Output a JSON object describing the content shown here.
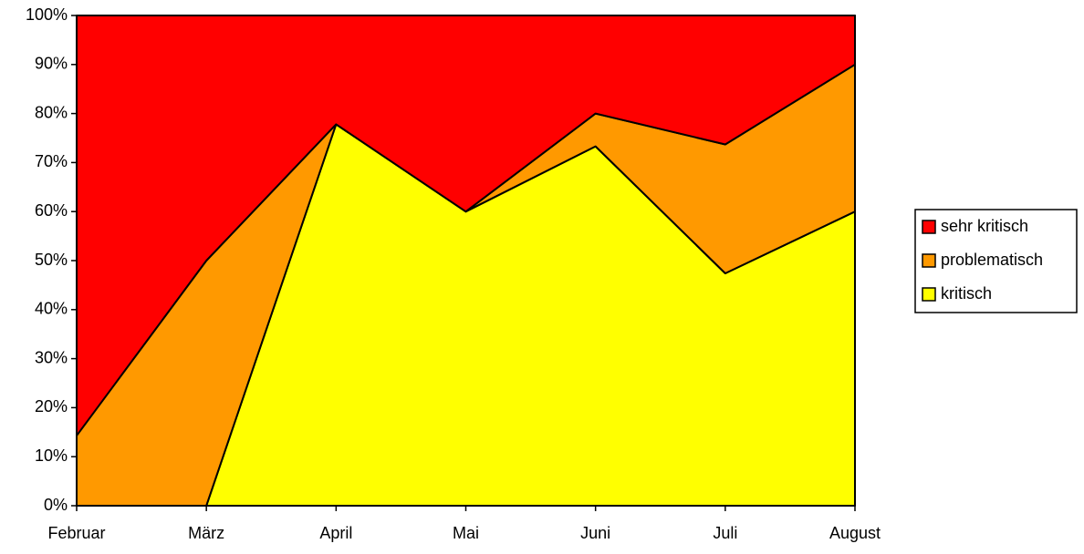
{
  "chart_data": {
    "type": "stacked_area_100",
    "categories": [
      "Februar",
      "März",
      "April",
      "Mai",
      "Juni",
      "Juli",
      "August"
    ],
    "series": [
      {
        "name": "kritisch",
        "color": "#ffff00",
        "values": [
          0,
          0,
          77.8,
          60,
          73.3,
          47.4,
          60
        ]
      },
      {
        "name": "problematisch",
        "color": "#ff9900",
        "values": [
          14.3,
          50,
          0,
          0,
          6.7,
          26.3,
          30
        ]
      },
      {
        "name": "sehr kritisch",
        "color": "#ff0000",
        "values": [
          85.7,
          50,
          22.2,
          40,
          20,
          26.3,
          10
        ]
      }
    ],
    "ylim": [
      0,
      100
    ],
    "yticks": [
      {
        "value": 0,
        "label": "0%"
      },
      {
        "value": 10,
        "label": "10%"
      },
      {
        "value": 20,
        "label": "20%"
      },
      {
        "value": 30,
        "label": "30%"
      },
      {
        "value": 40,
        "label": "40%"
      },
      {
        "value": 50,
        "label": "50%"
      },
      {
        "value": 60,
        "label": "60%"
      },
      {
        "value": 70,
        "label": "70%"
      },
      {
        "value": 80,
        "label": "80%"
      },
      {
        "value": 90,
        "label": "90%"
      },
      {
        "value": 100,
        "label": "100%"
      }
    ],
    "grid": false,
    "legend": "right"
  }
}
